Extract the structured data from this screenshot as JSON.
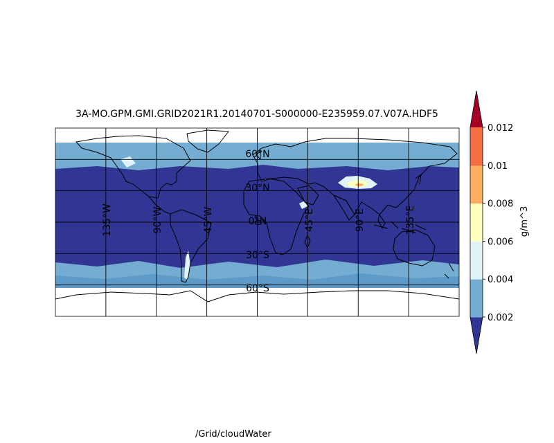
{
  "title": "3A-MO.GPM.GMI.GRID2021R1.20140701-S000000-E235959.07.V07A.HDF5",
  "footer_label": "/Grid/cloudWater",
  "map": {
    "projection": "equirectangular",
    "lon_range": [
      -180,
      180
    ],
    "lat_range": [
      -90,
      90
    ],
    "meridians": [
      -135,
      -90,
      -45,
      0,
      45,
      90,
      135
    ],
    "parallels": [
      -60,
      -30,
      0,
      30,
      60
    ],
    "meridian_labels": [
      "135°W",
      "90°W",
      "45°W",
      "0°",
      "45°E",
      "90°E",
      "135°E"
    ],
    "parallel_labels": [
      "60°S",
      "30°S",
      "0°N",
      "30°N",
      "60°N"
    ],
    "coastlines": "black"
  },
  "colorbar": {
    "label": "g/m^3",
    "ticks": [
      "0.002",
      "0.004",
      "0.006",
      "0.008",
      "0.01",
      "0.012"
    ],
    "levels": [
      0.002,
      0.004,
      0.006,
      0.008,
      0.01,
      0.012
    ],
    "colors": [
      "#313695",
      "#74add1",
      "#e0f3f8",
      "#ffffbf",
      "#fdae61",
      "#f46d43",
      "#d73027",
      "#a50026"
    ],
    "extend": "both"
  },
  "chart_data": {
    "type": "heatmap",
    "variable": "/Grid/cloudWater",
    "units": "g/m^3",
    "summary": [
      {
        "region": "tropics and subtropics (about 45°S to 45°N)",
        "value_band": "< 0.002"
      },
      {
        "region": "mid-latitude belts (about 45°–65° N and S)",
        "value_band": "0.002–0.004"
      },
      {
        "region": "Tibetan Plateau",
        "value_band": "0.004–0.012"
      },
      {
        "region": "southern Andes",
        "value_band": "0.004–0.008"
      }
    ]
  }
}
